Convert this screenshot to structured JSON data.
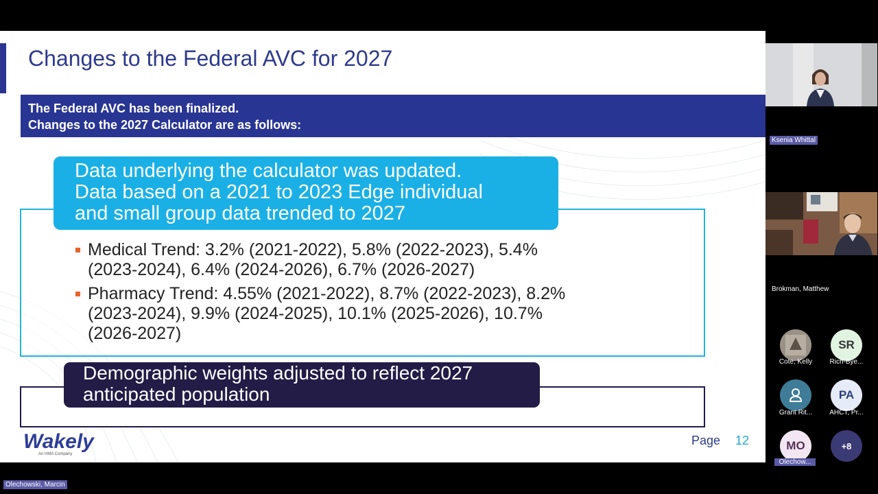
{
  "slide": {
    "title": "Changes to the Federal AVC for 2027",
    "banner_line1": "The Federal AVC has been finalized.",
    "banner_line2": "Changes to the 2027 Calculator are as follows:",
    "section1": {
      "line1": "Data underlying the calculator was updated.",
      "line2": "Data based on a 2021 to 2023 Edge individual",
      "line3": "and small group data trended to 2027"
    },
    "bullets": [
      {
        "line1": "Medical Trend: 3.2% (2021-2022), 5.8% (2022-2023), 5.4%",
        "line2": "(2023-2024), 6.4% (2024-2026), 6.7% (2026-2027)"
      },
      {
        "line1": "Pharmacy Trend: 4.55% (2021-2022), 8.7% (2022-2023), 8.2%",
        "line2": "(2023-2024), 9.9% (2024-2025), 10.1% (2025-2026), 10.7%",
        "line3": "(2026-2027)"
      }
    ],
    "section2": {
      "line1": "Demographic weights adjusted to reflect 2027",
      "line2": "anticipated population"
    },
    "logo_text": "Wakely",
    "logo_sub": "An HMA Company",
    "page_label": "Page",
    "page_number": "12",
    "colors": {
      "navy": "#283593",
      "cyan": "#1ab0e6",
      "dark_purple": "#231c47",
      "bullet": "#e8622a"
    }
  },
  "participants": {
    "video1_name": "Ksenia Whittal",
    "video2_name": "Brokman, Matthew",
    "avatars": [
      {
        "initials": "",
        "label": "Cote, Kelly",
        "icon": "photo-avatar"
      },
      {
        "initials": "SR",
        "label": "Rich-Bye...",
        "icon": ""
      },
      {
        "initials": "",
        "label": "Grant Rit...",
        "icon": "person-icon"
      },
      {
        "initials": "PA",
        "label": "AHCT, Pr...",
        "icon": ""
      },
      {
        "initials": "MO",
        "label": "Olechow...",
        "icon": ""
      },
      {
        "initials": "+8",
        "label": "",
        "icon": ""
      }
    ]
  },
  "active_speaker": "Olechowski, Marcin"
}
